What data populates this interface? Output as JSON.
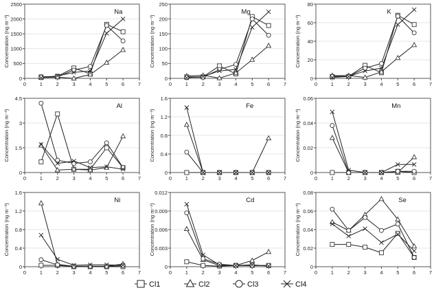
{
  "chart_data": {
    "type": "line",
    "grid": "horizontal",
    "legend_placement": "bottom",
    "x": [
      1,
      2,
      3,
      4,
      5,
      6
    ],
    "xlim": [
      0,
      7
    ],
    "xticks": [
      "0",
      "1",
      "2",
      "3",
      "4",
      "5",
      "6",
      "7"
    ],
    "ylabel": "Concentration (ng m⁻³)",
    "legend": [
      {
        "name": "Cl1",
        "marker": "square"
      },
      {
        "name": "Cl2",
        "marker": "triangle"
      },
      {
        "name": "Cl3",
        "marker": "circle"
      },
      {
        "name": "Cl4",
        "marker": "x"
      }
    ],
    "panels": [
      {
        "label": "Na",
        "ylim": [
          0,
          2500
        ],
        "yticks": [
          "0",
          "500",
          "1000",
          "1500",
          "2000",
          "2500"
        ],
        "series": [
          [
            50,
            70,
            350,
            150,
            1820,
            1570
          ],
          [
            30,
            40,
            0,
            130,
            530,
            960
          ],
          [
            40,
            50,
            280,
            400,
            1780,
            1260
          ],
          [
            20,
            80,
            200,
            250,
            1520,
            2000
          ]
        ]
      },
      {
        "label": "Mg",
        "ylim": [
          0,
          250
        ],
        "yticks": [
          "0",
          "50",
          "100",
          "150",
          "200",
          "250"
        ],
        "series": [
          [
            5,
            5,
            42,
            15,
            208,
            178
          ],
          [
            8,
            10,
            1,
            18,
            63,
            110
          ],
          [
            3,
            4,
            30,
            47,
            200,
            145
          ],
          [
            2,
            6,
            25,
            30,
            172,
            224
          ]
        ]
      },
      {
        "label": "K",
        "ylim": [
          0,
          80
        ],
        "yticks": [
          "0",
          "20",
          "40",
          "60",
          "80"
        ],
        "series": [
          [
            2,
            2,
            14,
            6,
            68,
            58
          ],
          [
            3,
            3,
            1,
            7,
            22,
            36
          ],
          [
            2,
            2,
            11,
            16,
            67,
            49
          ],
          [
            1,
            2,
            8,
            11,
            58,
            74
          ]
        ]
      },
      {
        "label": "Al",
        "ylim": [
          0,
          4.5
        ],
        "yticks": [
          "0",
          "1.5",
          "3",
          "4.5"
        ],
        "series": [
          [
            0.65,
            3.55,
            0.2,
            0.2,
            1.5,
            0.3
          ],
          [
            1.65,
            0.15,
            0.2,
            0.15,
            0.3,
            2.2
          ],
          [
            4.2,
            0.75,
            0.55,
            0.65,
            1.8,
            0.3
          ],
          [
            1.7,
            0.55,
            0.7,
            0.3,
            0.35,
            0.2
          ]
        ]
      },
      {
        "label": "Fe",
        "ylim": [
          0,
          1.6
        ],
        "yticks": [
          "0",
          "0.4",
          "0.8",
          "1.2",
          "1.6"
        ],
        "series": [
          [
            0,
            0,
            0,
            0,
            0,
            0
          ],
          [
            1.03,
            0,
            0,
            0,
            0,
            0.74
          ],
          [
            0.44,
            0,
            0,
            0,
            0,
            0
          ],
          [
            1.4,
            0,
            0,
            0,
            0,
            0
          ]
        ]
      },
      {
        "label": "Mn",
        "ylim": [
          0,
          0.06
        ],
        "yticks": [
          "0",
          "0.02",
          "0.04",
          "0.06"
        ],
        "series": [
          [
            0,
            0,
            0,
            0,
            0.001,
            0
          ],
          [
            0.028,
            0,
            0,
            0,
            0,
            0.0125
          ],
          [
            0.038,
            0,
            0,
            0,
            0.001,
            0.001
          ],
          [
            0.049,
            0.002,
            0,
            0,
            0.0065,
            0.0065
          ]
        ]
      },
      {
        "label": "Ni",
        "ylim": [
          0,
          1.6
        ],
        "yticks": [
          "0",
          "0.4",
          "0.8",
          "1.2",
          "1.6"
        ],
        "series": [
          [
            0.03,
            0.03,
            0,
            0,
            0,
            0
          ],
          [
            1.37,
            0.05,
            0.01,
            0.01,
            0.01,
            0.06
          ],
          [
            0.15,
            0.04,
            0.01,
            0.01,
            0.01,
            0.02
          ],
          [
            0.68,
            0.16,
            0.03,
            0.04,
            0.04,
            0.03
          ]
        ]
      },
      {
        "label": "Cd",
        "ylim": [
          0,
          0.012
        ],
        "yticks": [
          "0",
          "0.003",
          "0.006",
          "0.009",
          "0.012"
        ],
        "series": [
          [
            0.0008,
            0.0002,
            0.0001,
            0.0002,
            0.0002,
            0.0002
          ],
          [
            0.0061,
            0.0011,
            0.0002,
            0.0002,
            0.001,
            0.0024
          ],
          [
            0.0087,
            0.0013,
            0.0004,
            0.0002,
            0.0002,
            0.0002
          ],
          [
            0.0101,
            0.0019,
            0.0003,
            0.0002,
            0.0003,
            0.0001
          ]
        ]
      },
      {
        "label": "Se",
        "ylim": [
          0,
          0.08
        ],
        "yticks": [
          "0",
          "0.02",
          "0.04",
          "0.06",
          "0.08"
        ],
        "series": [
          [
            0.024,
            0.024,
            0.021,
            0.015,
            0.036,
            0.01
          ],
          [
            0.048,
            0.039,
            0.056,
            0.073,
            0.051,
            0.022
          ],
          [
            0.062,
            0.039,
            0.053,
            0.039,
            0.046,
            0.01
          ],
          [
            0.046,
            0.033,
            0.041,
            0.026,
            0.035,
            0.017
          ]
        ]
      }
    ]
  }
}
